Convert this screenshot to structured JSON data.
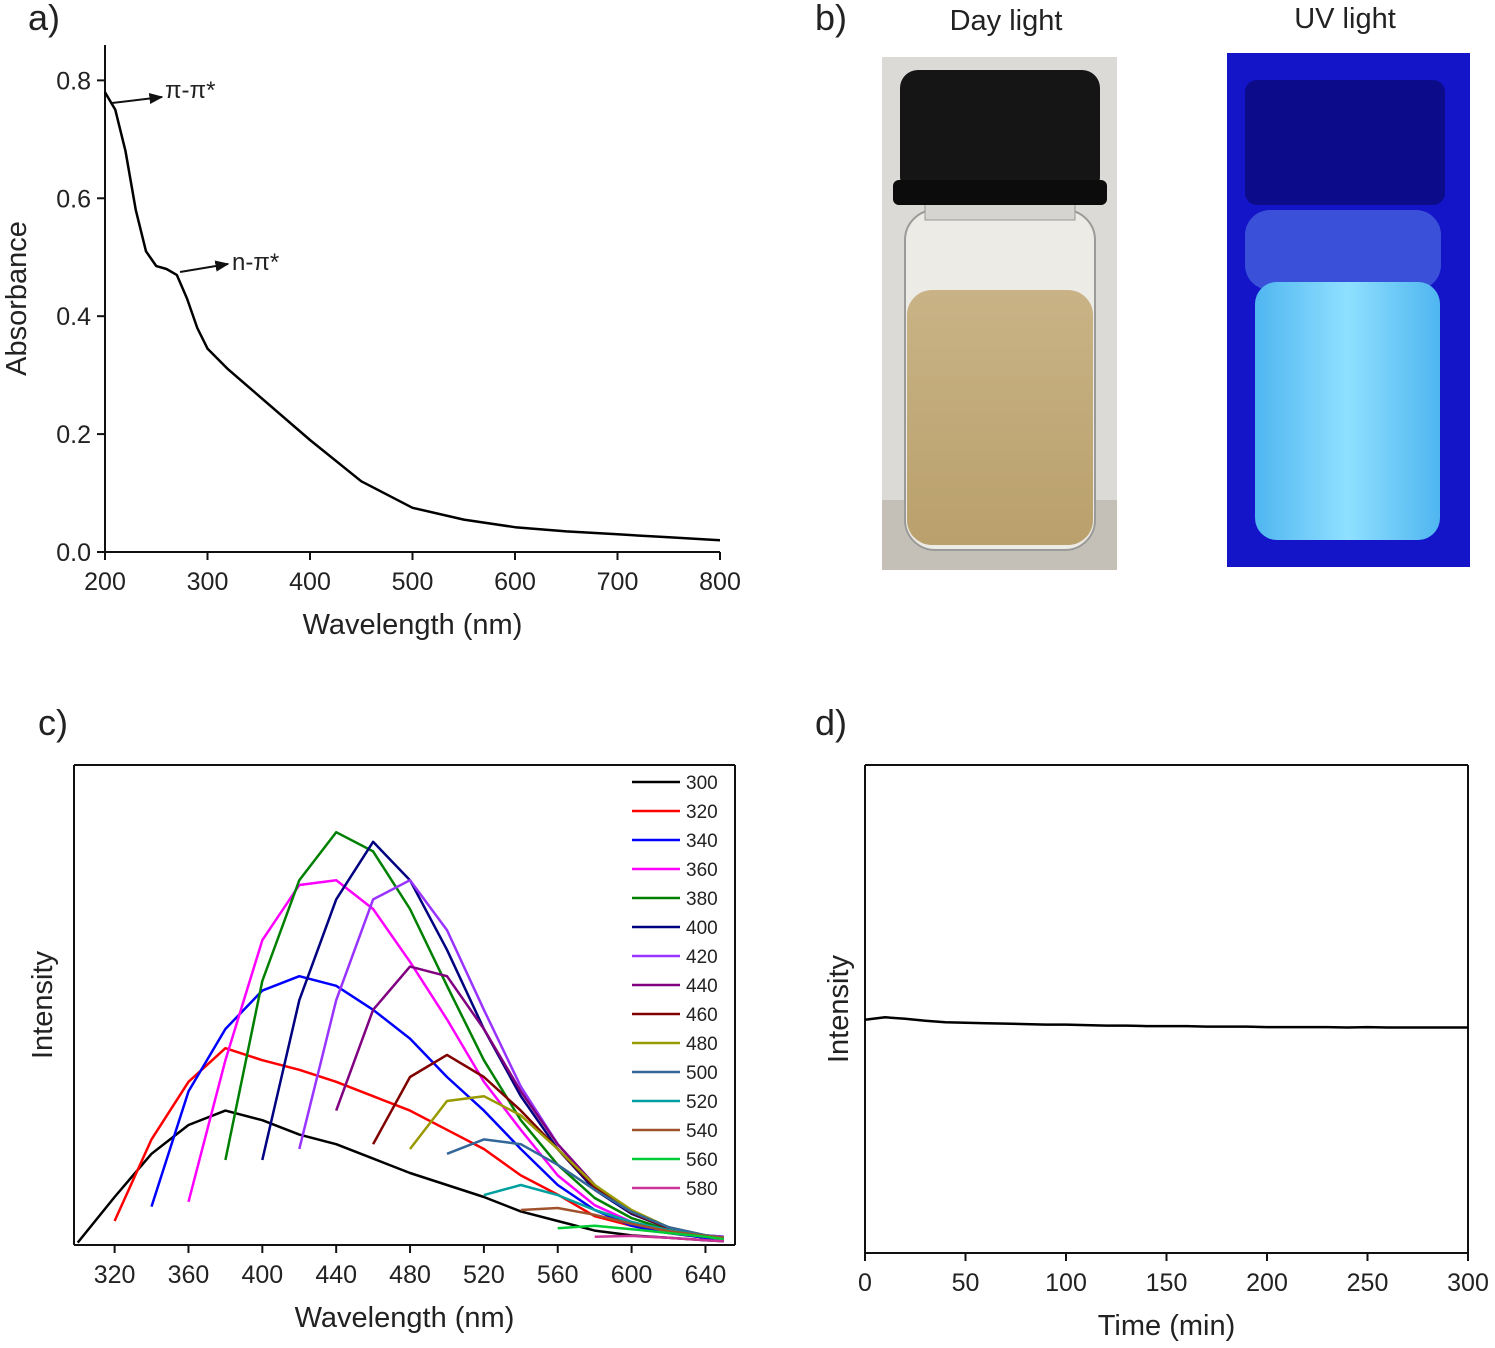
{
  "chart_data": [
    {
      "type": "line",
      "panel": "a)",
      "xlabel": "Wavelength (nm)",
      "ylabel": "Absorbance",
      "frame": false,
      "xlim": [
        200,
        800
      ],
      "xticks": [
        200,
        300,
        400,
        500,
        600,
        700,
        800
      ],
      "ylim": [
        0,
        0.86
      ],
      "yticks": [
        {
          "value": 0,
          "label": "0.0"
        },
        0.2,
        0.4,
        0.6,
        0.8
      ],
      "x": [
        200,
        210,
        220,
        230,
        240,
        250,
        260,
        270,
        280,
        290,
        300,
        320,
        350,
        400,
        450,
        500,
        550,
        600,
        650,
        700,
        750,
        800
      ],
      "series": [
        {
          "color": "#000000",
          "values": [
            0.78,
            0.75,
            0.68,
            0.58,
            0.51,
            0.485,
            0.48,
            0.47,
            0.43,
            0.38,
            0.345,
            0.31,
            0.265,
            0.19,
            0.12,
            0.075,
            0.055,
            0.042,
            0.035,
            0.03,
            0.025,
            0.02
          ]
        }
      ],
      "annotations": [
        "π-π*",
        "n-π*"
      ]
    },
    {
      "type": "line",
      "panel": "c)",
      "xlabel": "Wavelength (nm)",
      "ylabel": "Intensity",
      "frame": true,
      "legend": "upper right",
      "xlim": [
        298,
        656
      ],
      "xticks": [
        320,
        360,
        400,
        440,
        480,
        520,
        560,
        600,
        640
      ],
      "ylim": [
        0,
        100
      ],
      "x": [
        300,
        320,
        340,
        360,
        380,
        400,
        420,
        440,
        460,
        480,
        500,
        520,
        540,
        560,
        580,
        600,
        620,
        640,
        650
      ],
      "series": [
        {
          "name": "300",
          "color": "#000000",
          "values": [
            0.5,
            10,
            19,
            25,
            28,
            26,
            23,
            21,
            18,
            15,
            12.5,
            10,
            7,
            5,
            3,
            2,
            1.5,
            1,
            0.8
          ]
        },
        {
          "name": "320",
          "color": "#ff0000",
          "values": [
            null,
            5,
            22,
            34,
            41,
            38.5,
            36.5,
            34,
            31,
            28,
            24,
            20,
            14.5,
            10.5,
            6,
            4,
            2.5,
            1.5,
            1
          ]
        },
        {
          "name": "340",
          "color": "#0000ff",
          "values": [
            null,
            null,
            8,
            32,
            45,
            53,
            56,
            54,
            49,
            43,
            35,
            28,
            20,
            12.5,
            7.3,
            4,
            2.5,
            1.5,
            1
          ]
        },
        {
          "name": "360",
          "color": "#ff00ff",
          "values": [
            null,
            null,
            null,
            9,
            38.5,
            63.5,
            75,
            76,
            70,
            59,
            47,
            34,
            24,
            14.5,
            8.3,
            4.8,
            2.7,
            1.7,
            1.2
          ]
        },
        {
          "name": "380",
          "color": "#008000",
          "values": [
            null,
            null,
            null,
            null,
            17.7,
            55,
            76,
            86,
            82,
            70,
            54,
            38.5,
            26,
            16.7,
            9.8,
            5.6,
            3.1,
            1.9,
            1.5
          ]
        },
        {
          "name": "400",
          "color": "#000080",
          "values": [
            null,
            null,
            null,
            null,
            null,
            17.7,
            51,
            72,
            84,
            76,
            61.5,
            45,
            31,
            20,
            11.5,
            6.5,
            3.5,
            2,
            1.7
          ]
        },
        {
          "name": "420",
          "color": "#9933ff",
          "values": [
            null,
            null,
            null,
            null,
            null,
            null,
            20,
            51,
            72,
            76,
            65.6,
            49,
            33,
            21,
            12.5,
            6.9,
            3.7,
            2,
            1.7
          ]
        },
        {
          "name": "440",
          "color": "#800080",
          "values": [
            null,
            null,
            null,
            null,
            null,
            null,
            null,
            28,
            49,
            58,
            56,
            45,
            32,
            21,
            12.5,
            6.9,
            3.5,
            1.9,
            1.5
          ]
        },
        {
          "name": "460",
          "color": "#800000",
          "values": [
            null,
            null,
            null,
            null,
            null,
            null,
            null,
            null,
            21,
            35,
            39.6,
            35,
            28,
            20,
            12,
            6.7,
            3.5,
            1.9,
            1.5
          ]
        },
        {
          "name": "480",
          "color": "#999900",
          "values": [
            null,
            null,
            null,
            null,
            null,
            null,
            null,
            null,
            null,
            20,
            30,
            31,
            27,
            20,
            12.5,
            7.3,
            3.7,
            2,
            1.5
          ]
        },
        {
          "name": "500",
          "color": "#336699",
          "values": [
            null,
            null,
            null,
            null,
            null,
            null,
            null,
            null,
            null,
            null,
            19,
            22,
            21,
            16.7,
            11.5,
            6.9,
            3.7,
            2,
            1.5
          ]
        },
        {
          "name": "520",
          "color": "#00a0a0",
          "values": [
            null,
            null,
            null,
            null,
            null,
            null,
            null,
            null,
            null,
            null,
            null,
            10.4,
            12.5,
            10.4,
            7.3,
            4.8,
            3.1,
            1.9,
            1.5
          ]
        },
        {
          "name": "540",
          "color": "#a0522d",
          "values": [
            null,
            null,
            null,
            null,
            null,
            null,
            null,
            null,
            null,
            null,
            null,
            null,
            7.3,
            7.7,
            6.3,
            4.4,
            2.9,
            1.9,
            1.5
          ]
        },
        {
          "name": "560",
          "color": "#00cc33",
          "values": [
            null,
            null,
            null,
            null,
            null,
            null,
            null,
            null,
            null,
            null,
            null,
            null,
            null,
            3.5,
            4,
            3.3,
            2.5,
            1.7,
            1.2
          ]
        },
        {
          "name": "580",
          "color": "#cc3399",
          "values": [
            null,
            null,
            null,
            null,
            null,
            null,
            null,
            null,
            null,
            null,
            null,
            null,
            null,
            null,
            1.7,
            1.9,
            1.5,
            1,
            0.8
          ]
        }
      ]
    },
    {
      "type": "line",
      "panel": "d)",
      "xlabel": "Time (min)",
      "ylabel": "Intensity",
      "frame": true,
      "xlim": [
        0,
        300
      ],
      "xticks": [
        0,
        50,
        100,
        150,
        200,
        250,
        300
      ],
      "ylim": [
        0,
        100
      ],
      "x": [
        0,
        10,
        20,
        30,
        40,
        50,
        60,
        70,
        80,
        90,
        100,
        110,
        120,
        130,
        140,
        150,
        160,
        170,
        180,
        190,
        200,
        210,
        220,
        230,
        240,
        250,
        260,
        270,
        280,
        290,
        300
      ],
      "series": [
        {
          "color": "#000000",
          "values": [
            47.8,
            48.3,
            48.0,
            47.6,
            47.3,
            47.2,
            47.1,
            47.0,
            46.9,
            46.8,
            46.8,
            46.7,
            46.6,
            46.6,
            46.5,
            46.5,
            46.5,
            46.4,
            46.4,
            46.4,
            46.3,
            46.3,
            46.3,
            46.3,
            46.2,
            46.3,
            46.2,
            46.2,
            46.2,
            46.2,
            46.2
          ]
        }
      ]
    }
  ],
  "photo": {
    "panel": "b)",
    "captions": [
      "Day light",
      "UV light"
    ]
  }
}
